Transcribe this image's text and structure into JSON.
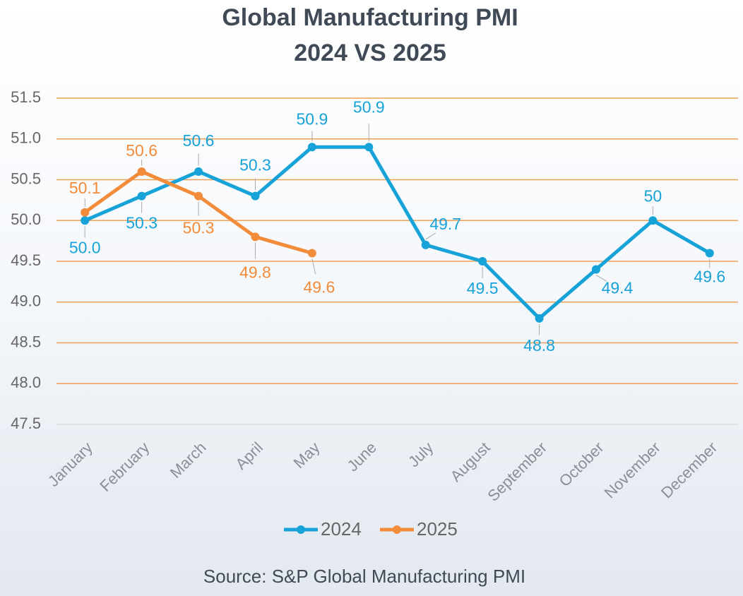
{
  "chart_data": {
    "type": "line",
    "title": "Global Manufacturing PMI",
    "subtitle": "2024 VS 2025",
    "source": "Source: S&P Global Manufacturing PMI",
    "categories": [
      "January",
      "February",
      "March",
      "April",
      "May",
      "June",
      "July",
      "August",
      "September",
      "October",
      "November",
      "December"
    ],
    "series": [
      {
        "name": "2024",
        "color": "#17a2d8",
        "values": [
          50.0,
          50.3,
          50.6,
          50.3,
          50.9,
          50.9,
          49.7,
          49.5,
          48.8,
          49.4,
          50,
          49.6
        ],
        "value_labels": [
          "50.0",
          "50.3",
          "50.6",
          "50.3",
          "50.9",
          "50.9",
          "49.7",
          "49.5",
          "48.8",
          "49.4",
          "50",
          "49.6"
        ]
      },
      {
        "name": "2025",
        "color": "#f28c3a",
        "values": [
          50.1,
          50.6,
          50.3,
          49.8,
          49.6,
          null,
          null,
          null,
          null,
          null,
          null,
          null
        ],
        "value_labels": [
          "50.1",
          "50.6",
          "50.3",
          "49.8",
          "49.6",
          null,
          null,
          null,
          null,
          null,
          null,
          null
        ]
      }
    ],
    "ylim": [
      47.5,
      51.5
    ],
    "yticks": [
      47.5,
      {
        "value": 48,
        "label": "48.0"
      },
      48.5,
      {
        "value": 49,
        "label": "49.0"
      },
      49.5,
      {
        "value": 50,
        "label": "50.0"
      },
      50.5,
      {
        "value": 51,
        "label": "51.0"
      },
      51.5
    ],
    "grid": true,
    "grid_color": "#f0a055",
    "legend": "bottom"
  }
}
